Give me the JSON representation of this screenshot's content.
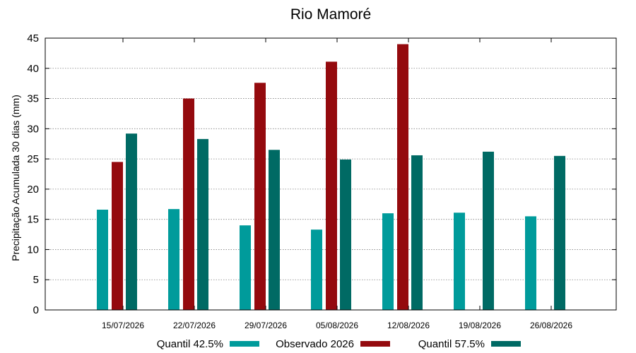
{
  "chart_data": {
    "type": "bar",
    "title": "Rio Mamoré",
    "xlabel": "",
    "ylabel": "Precipitação Acumulada 30 dias (mm)",
    "ylim": [
      0,
      45
    ],
    "yticks": [
      0,
      5,
      10,
      15,
      20,
      25,
      30,
      35,
      40,
      45
    ],
    "grid": true,
    "legend_position": "bottom",
    "categories": [
      "15/07/2026",
      "22/07/2026",
      "29/07/2026",
      "05/08/2026",
      "12/08/2026",
      "19/08/2026",
      "26/08/2026"
    ],
    "series": [
      {
        "name": "Quantil 42.5%",
        "color": "#009b9b",
        "values": [
          16.6,
          16.7,
          14.0,
          13.3,
          16.0,
          16.1,
          15.5
        ]
      },
      {
        "name": "Observado 2026",
        "color": "#940a0e",
        "values": [
          24.5,
          35.0,
          37.6,
          41.1,
          44.0,
          null,
          null
        ]
      },
      {
        "name": "Quantil 57.5%",
        "color": "#006a64",
        "values": [
          29.2,
          28.3,
          26.5,
          24.9,
          25.6,
          26.2,
          25.5
        ]
      }
    ]
  }
}
